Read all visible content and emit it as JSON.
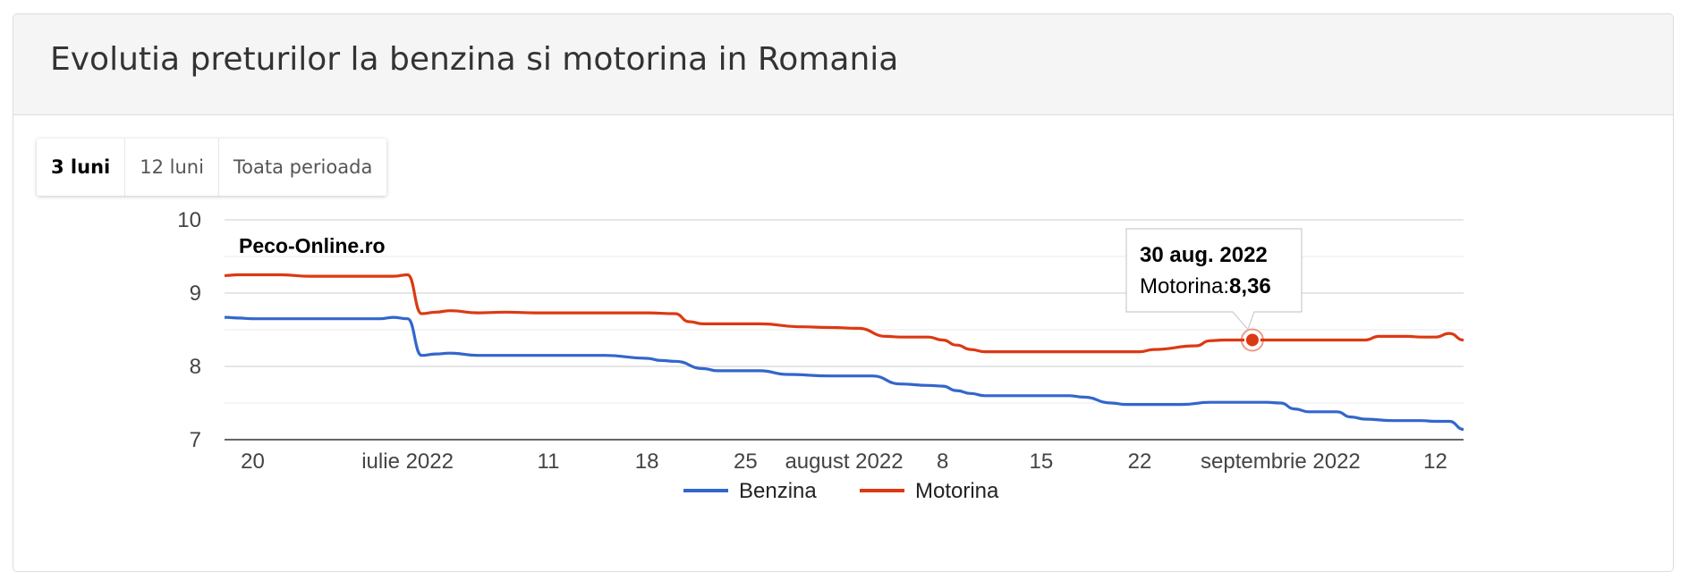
{
  "panel": {
    "title": "Evolutia preturilor la benzina si motorina in Romania"
  },
  "range_buttons": [
    {
      "label": "3 luni",
      "active": true
    },
    {
      "label": "12 luni",
      "active": false
    },
    {
      "label": "Toata perioada",
      "active": false
    }
  ],
  "chart_data": {
    "type": "line",
    "watermark": "Peco-Online.ro",
    "x_range": [
      "2022-06-18",
      "2022-09-14"
    ],
    "ylim": [
      7,
      10
    ],
    "yticks": [
      7,
      8,
      9,
      10
    ],
    "minor_gridlines": [
      7.5,
      8.5,
      9.5
    ],
    "grid": true,
    "legend": "bottom",
    "xticks": [
      {
        "date": "2022-06-20",
        "label": "20"
      },
      {
        "date": "2022-07-01",
        "label": "iulie 2022"
      },
      {
        "date": "2022-07-11",
        "label": "11"
      },
      {
        "date": "2022-07-18",
        "label": "18"
      },
      {
        "date": "2022-07-25",
        "label": "25"
      },
      {
        "date": "2022-08-01",
        "label": "august 2022"
      },
      {
        "date": "2022-08-08",
        "label": "8"
      },
      {
        "date": "2022-08-15",
        "label": "15"
      },
      {
        "date": "2022-08-22",
        "label": "22"
      },
      {
        "date": "2022-09-01",
        "label": "septembrie 2022"
      },
      {
        "date": "2022-09-12",
        "label": "12"
      }
    ],
    "series": [
      {
        "name": "Motorina",
        "color": "#dc3912",
        "points": [
          [
            "2022-06-18",
            9.24
          ],
          [
            "2022-06-19",
            9.25
          ],
          [
            "2022-06-22",
            9.25
          ],
          [
            "2022-06-24",
            9.23
          ],
          [
            "2022-06-29",
            9.23
          ],
          [
            "2022-06-30",
            9.23
          ],
          [
            "2022-07-01",
            9.25
          ],
          [
            "2022-07-02",
            8.72
          ],
          [
            "2022-07-03",
            8.74
          ],
          [
            "2022-07-04",
            8.76
          ],
          [
            "2022-07-06",
            8.73
          ],
          [
            "2022-07-08",
            8.74
          ],
          [
            "2022-07-10",
            8.73
          ],
          [
            "2022-07-18",
            8.73
          ],
          [
            "2022-07-20",
            8.72
          ],
          [
            "2022-07-21",
            8.61
          ],
          [
            "2022-07-22",
            8.58
          ],
          [
            "2022-07-26",
            8.58
          ],
          [
            "2022-07-29",
            8.54
          ],
          [
            "2022-07-31",
            8.53
          ],
          [
            "2022-08-02",
            8.52
          ],
          [
            "2022-08-04",
            8.41
          ],
          [
            "2022-08-05",
            8.4
          ],
          [
            "2022-08-07",
            8.4
          ],
          [
            "2022-08-08",
            8.36
          ],
          [
            "2022-08-09",
            8.29
          ],
          [
            "2022-08-10",
            8.23
          ],
          [
            "2022-08-11",
            8.2
          ],
          [
            "2022-08-17",
            8.2
          ],
          [
            "2022-08-18",
            8.2
          ],
          [
            "2022-08-22",
            8.2
          ],
          [
            "2022-08-23",
            8.23
          ],
          [
            "2022-08-26",
            8.28
          ],
          [
            "2022-08-27",
            8.35
          ],
          [
            "2022-08-28",
            8.36
          ],
          [
            "2022-08-30",
            8.36
          ],
          [
            "2022-09-07",
            8.36
          ],
          [
            "2022-09-08",
            8.41
          ],
          [
            "2022-09-10",
            8.41
          ],
          [
            "2022-09-11",
            8.4
          ],
          [
            "2022-09-12",
            8.4
          ],
          [
            "2022-09-13",
            8.45
          ],
          [
            "2022-09-14",
            8.36
          ]
        ]
      },
      {
        "name": "Benzina",
        "color": "#3366cc",
        "points": [
          [
            "2022-06-18",
            8.67
          ],
          [
            "2022-06-19",
            8.66
          ],
          [
            "2022-06-20",
            8.65
          ],
          [
            "2022-06-24",
            8.65
          ],
          [
            "2022-06-29",
            8.65
          ],
          [
            "2022-06-30",
            8.67
          ],
          [
            "2022-07-01",
            8.65
          ],
          [
            "2022-07-02",
            8.15
          ],
          [
            "2022-07-03",
            8.17
          ],
          [
            "2022-07-04",
            8.18
          ],
          [
            "2022-07-06",
            8.15
          ],
          [
            "2022-07-08",
            8.15
          ],
          [
            "2022-07-10",
            8.15
          ],
          [
            "2022-07-15",
            8.15
          ],
          [
            "2022-07-18",
            8.11
          ],
          [
            "2022-07-19",
            8.08
          ],
          [
            "2022-07-20",
            8.07
          ],
          [
            "2022-07-22",
            7.97
          ],
          [
            "2022-07-23",
            7.94
          ],
          [
            "2022-07-26",
            7.94
          ],
          [
            "2022-07-28",
            7.89
          ],
          [
            "2022-07-31",
            7.87
          ],
          [
            "2022-08-03",
            7.87
          ],
          [
            "2022-08-05",
            7.76
          ],
          [
            "2022-08-07",
            7.74
          ],
          [
            "2022-08-08",
            7.73
          ],
          [
            "2022-08-09",
            7.67
          ],
          [
            "2022-08-10",
            7.63
          ],
          [
            "2022-08-11",
            7.6
          ],
          [
            "2022-08-17",
            7.6
          ],
          [
            "2022-08-18",
            7.58
          ],
          [
            "2022-08-20",
            7.5
          ],
          [
            "2022-08-21",
            7.48
          ],
          [
            "2022-08-25",
            7.48
          ],
          [
            "2022-08-27",
            7.51
          ],
          [
            "2022-08-31",
            7.51
          ],
          [
            "2022-09-01",
            7.5
          ],
          [
            "2022-09-02",
            7.42
          ],
          [
            "2022-09-03",
            7.38
          ],
          [
            "2022-09-05",
            7.38
          ],
          [
            "2022-09-06",
            7.31
          ],
          [
            "2022-09-07",
            7.28
          ],
          [
            "2022-09-09",
            7.26
          ],
          [
            "2022-09-11",
            7.26
          ],
          [
            "2022-09-12",
            7.25
          ],
          [
            "2022-09-13",
            7.25
          ],
          [
            "2022-09-14",
            7.14
          ]
        ]
      }
    ],
    "tooltip": {
      "series": "Motorina",
      "date": "2022-08-30",
      "title": "30 aug. 2022",
      "label": "Motorina: ",
      "value": "8,36"
    }
  }
}
